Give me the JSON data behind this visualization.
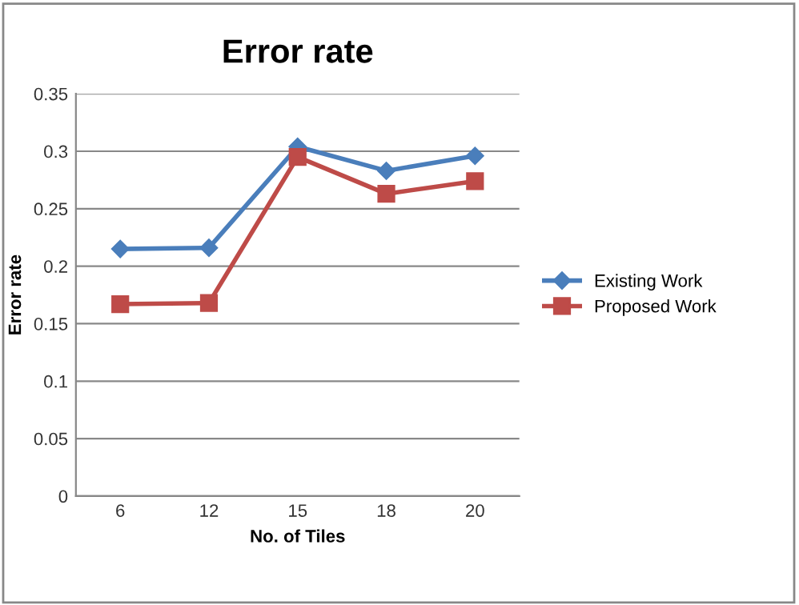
{
  "chart_data": {
    "type": "line",
    "title": "Error rate",
    "xlabel": "No. of Tiles",
    "ylabel": "Error rate",
    "categories": [
      "6",
      "12",
      "15",
      "18",
      "20"
    ],
    "series": [
      {
        "name": "Existing Work",
        "color": "#4a7ebb",
        "marker": "diamond",
        "values": [
          0.215,
          0.216,
          0.304,
          0.283,
          0.296
        ]
      },
      {
        "name": "Proposed Work",
        "color": "#be4b48",
        "marker": "square",
        "values": [
          0.167,
          0.168,
          0.295,
          0.263,
          0.274
        ]
      }
    ],
    "ylim": [
      0,
      0.35
    ],
    "yticks": [
      0,
      0.05,
      0.1,
      0.15,
      0.2,
      0.25,
      0.3,
      0.35
    ],
    "grid": "y",
    "legend": "right",
    "line_style": "solid"
  }
}
